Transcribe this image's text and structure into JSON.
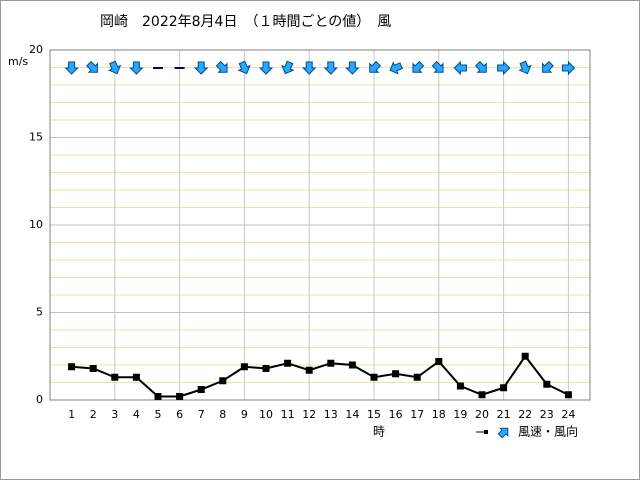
{
  "chart_data": {
    "type": "line",
    "title": "岡崎　2022年8月4日　（１時間ごとの値）　風",
    "y_label": "m/s",
    "x_label": "時",
    "x": [
      1,
      2,
      3,
      4,
      5,
      6,
      7,
      8,
      9,
      10,
      11,
      12,
      13,
      14,
      15,
      16,
      17,
      18,
      19,
      20,
      21,
      22,
      23,
      24
    ],
    "series": [
      {
        "name": "風速・風向",
        "color": "#000000",
        "values": [
          1.9,
          1.8,
          1.3,
          1.3,
          0.2,
          0.2,
          0.6,
          1.1,
          1.9,
          1.8,
          2.1,
          1.7,
          2.1,
          2.0,
          1.3,
          1.5,
          1.3,
          2.2,
          0.8,
          0.3,
          0.7,
          2.5,
          0.9,
          0.3
        ],
        "directions": [
          0,
          315,
          337.5,
          0,
          null,
          null,
          0,
          315,
          337.5,
          0,
          22.5,
          0,
          0,
          0,
          45,
          67.5,
          45,
          315,
          90,
          315,
          270,
          337.5,
          45,
          270
        ]
      }
    ],
    "arrow_color": "#29a8ff",
    "xlim": [
      0,
      25
    ],
    "ylim": [
      0,
      20
    ],
    "yticks": [
      0,
      5,
      10,
      15,
      20
    ],
    "xgrid_step": 3,
    "yminor_step": 1,
    "grid": true
  }
}
